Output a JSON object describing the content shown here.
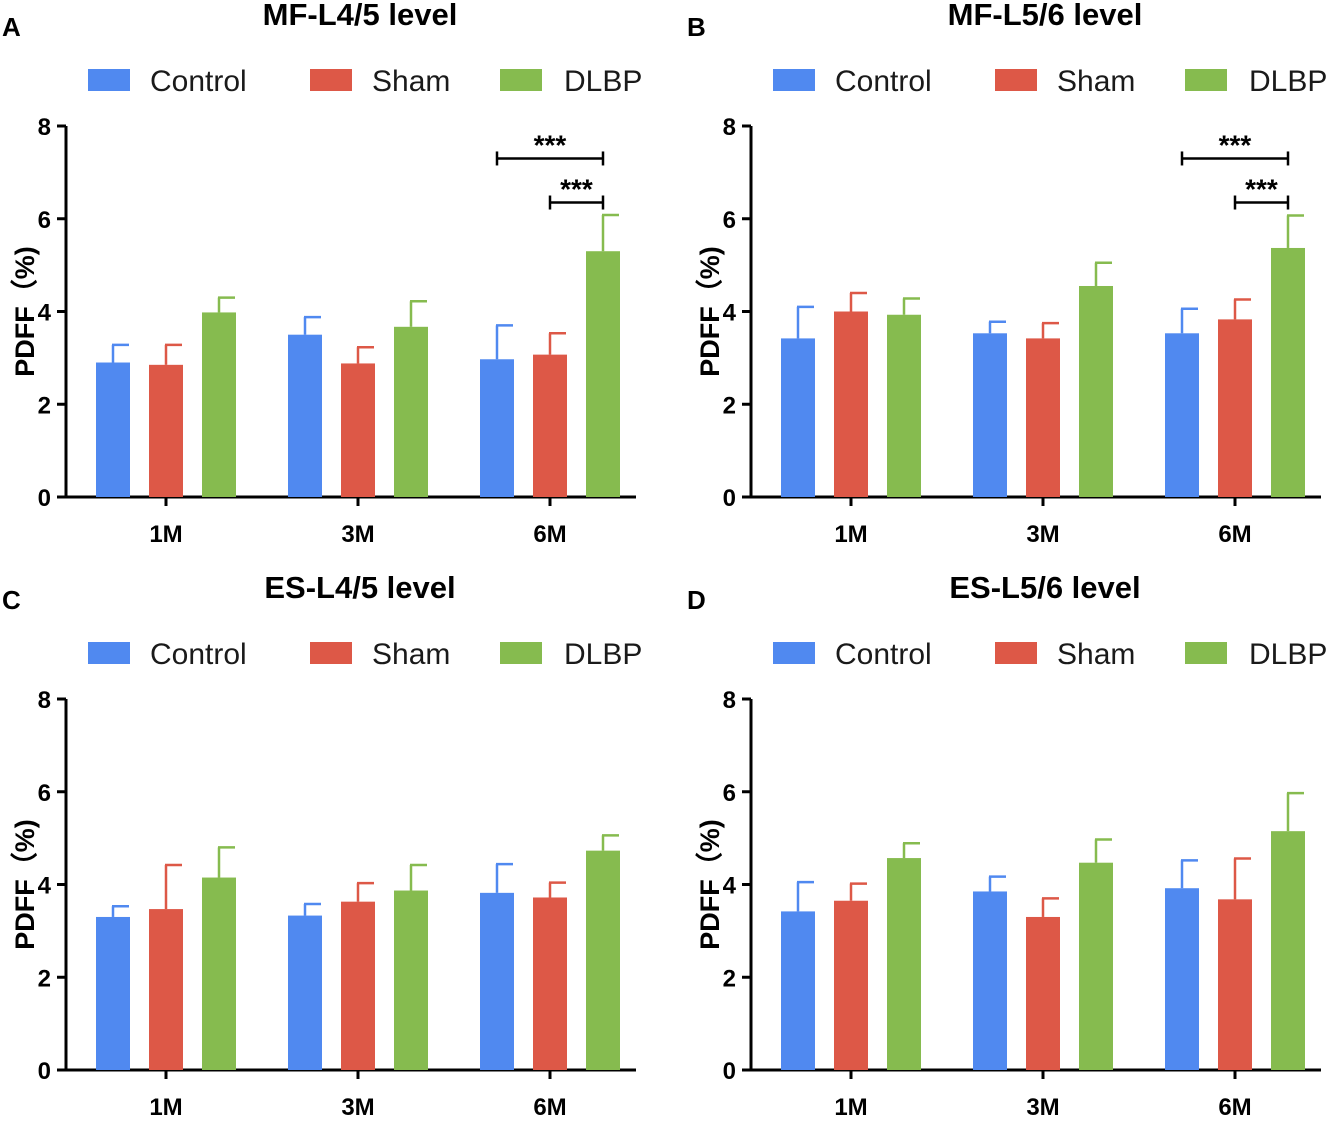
{
  "figure": {
    "colors": {
      "Control": "#5089f0",
      "Sham": "#dd5847",
      "DLBP": "#86bb4f"
    },
    "legend": [
      "Control",
      "Sham",
      "DLBP"
    ]
  },
  "chart_data": [
    {
      "panel": "A",
      "title": "MF-L4/5 level",
      "type": "bar",
      "ylabel": "PDFF（%)",
      "ylim": [
        0,
        8
      ],
      "yticks": [
        0,
        2,
        4,
        6,
        8
      ],
      "categories": [
        "1M",
        "3M",
        "6M"
      ],
      "series": [
        {
          "name": "Control",
          "values": [
            2.9,
            3.5,
            2.97
          ],
          "errors": [
            0.38,
            0.38,
            0.73
          ]
        },
        {
          "name": "Sham",
          "values": [
            2.85,
            2.88,
            3.07
          ],
          "errors": [
            0.43,
            0.35,
            0.46
          ]
        },
        {
          "name": "DLBP",
          "values": [
            3.98,
            3.67,
            5.3
          ],
          "errors": [
            0.32,
            0.55,
            0.78
          ]
        }
      ],
      "significance": [
        {
          "from_series": 0,
          "to_series": 2,
          "category": 2,
          "label": "***",
          "y": 7.3
        },
        {
          "from_series": 1,
          "to_series": 2,
          "category": 2,
          "label": "***",
          "y": 6.35
        }
      ]
    },
    {
      "panel": "B",
      "title": "MF-L5/6 level",
      "type": "bar",
      "ylabel": "PDFF（%)",
      "ylim": [
        0,
        8
      ],
      "yticks": [
        0,
        2,
        4,
        6,
        8
      ],
      "categories": [
        "1M",
        "3M",
        "6M"
      ],
      "series": [
        {
          "name": "Control",
          "values": [
            3.42,
            3.53,
            3.53
          ],
          "errors": [
            0.68,
            0.25,
            0.53
          ]
        },
        {
          "name": "Sham",
          "values": [
            4.0,
            3.42,
            3.83
          ],
          "errors": [
            0.4,
            0.33,
            0.43
          ]
        },
        {
          "name": "DLBP",
          "values": [
            3.93,
            4.55,
            5.37
          ],
          "errors": [
            0.35,
            0.5,
            0.7
          ]
        }
      ],
      "significance": [
        {
          "from_series": 0,
          "to_series": 2,
          "category": 2,
          "label": "***",
          "y": 7.3
        },
        {
          "from_series": 1,
          "to_series": 2,
          "category": 2,
          "label": "***",
          "y": 6.35
        }
      ]
    },
    {
      "panel": "C",
      "title": "ES-L4/5 level",
      "type": "bar",
      "ylabel": "PDFF（%)",
      "ylim": [
        0,
        8
      ],
      "yticks": [
        0,
        2,
        4,
        6,
        8
      ],
      "categories": [
        "1M",
        "3M",
        "6M"
      ],
      "series": [
        {
          "name": "Control",
          "values": [
            3.3,
            3.33,
            3.82
          ],
          "errors": [
            0.23,
            0.25,
            0.62
          ]
        },
        {
          "name": "Sham",
          "values": [
            3.47,
            3.63,
            3.72
          ],
          "errors": [
            0.95,
            0.4,
            0.32
          ]
        },
        {
          "name": "DLBP",
          "values": [
            4.15,
            3.87,
            4.73
          ],
          "errors": [
            0.65,
            0.55,
            0.33
          ]
        }
      ],
      "significance": []
    },
    {
      "panel": "D",
      "title": "ES-L5/6 level",
      "type": "bar",
      "ylabel": "PDFF（%)",
      "ylim": [
        0,
        8
      ],
      "yticks": [
        0,
        2,
        4,
        6,
        8
      ],
      "categories": [
        "1M",
        "3M",
        "6M"
      ],
      "series": [
        {
          "name": "Control",
          "values": [
            3.42,
            3.85,
            3.92
          ],
          "errors": [
            0.63,
            0.32,
            0.6
          ]
        },
        {
          "name": "Sham",
          "values": [
            3.65,
            3.3,
            3.68
          ],
          "errors": [
            0.37,
            0.4,
            0.88
          ]
        },
        {
          "name": "DLBP",
          "values": [
            4.57,
            4.47,
            5.15
          ],
          "errors": [
            0.32,
            0.5,
            0.82
          ]
        }
      ],
      "significance": []
    }
  ]
}
